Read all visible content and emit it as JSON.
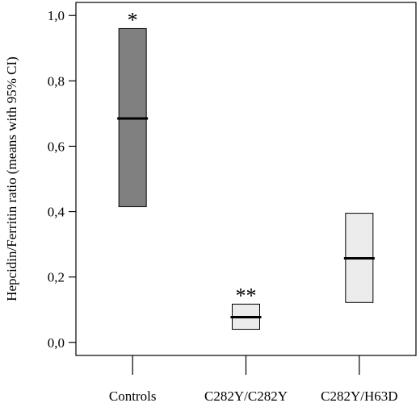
{
  "chart_data": {
    "type": "box",
    "title": "",
    "xlabel": "",
    "ylabel": "Hepcidin/Ferritin ratio (means with 95% CI)",
    "ylim": [
      -0.04,
      1.04
    ],
    "yticks": [
      {
        "value": 0.0,
        "label": "0,0"
      },
      {
        "value": 0.2,
        "label": "0,2"
      },
      {
        "value": 0.4,
        "label": "0,4"
      },
      {
        "value": 0.6,
        "label": "0,6"
      },
      {
        "value": 0.8,
        "label": "0,8"
      },
      {
        "value": 1.0,
        "label": "1,0"
      }
    ],
    "categories": [
      "Controls",
      "C282Y/C282Y",
      "C282Y/H63D"
    ],
    "series": [
      {
        "category": "Controls",
        "mean": 0.685,
        "ci_low": 0.415,
        "ci_high": 0.96,
        "fill": "#808080",
        "annotation": "*"
      },
      {
        "category": "C282Y/C282Y",
        "mean": 0.077,
        "ci_low": 0.04,
        "ci_high": 0.117,
        "fill": "#ececec",
        "annotation": "**"
      },
      {
        "category": "C282Y/H63D",
        "mean": 0.257,
        "ci_low": 0.122,
        "ci_high": 0.395,
        "fill": "#ececec",
        "annotation": ""
      }
    ],
    "grid": false,
    "legend": "none"
  }
}
